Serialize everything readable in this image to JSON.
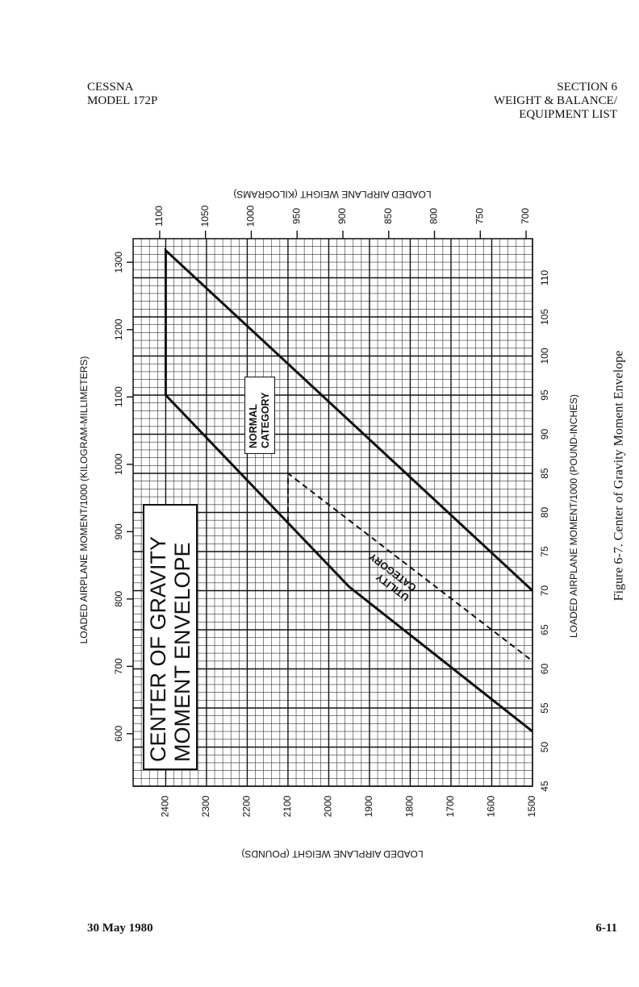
{
  "header": {
    "left": [
      "CESSNA",
      "MODEL 172P"
    ],
    "right": [
      "SECTION 6",
      "WEIGHT & BALANCE/",
      "EQUIPMENT LIST"
    ]
  },
  "footer": {
    "left": "30 May 1980",
    "right": "6-11"
  },
  "caption": "Figure 6-7.  Center of Gravity Moment Envelope",
  "chart_data": {
    "type": "line",
    "title": "CENTER OF GRAVITY MOMENT ENVELOPE",
    "xlabel": "LOADED AIRPLANE MOMENT/1000 (POUND-INCHES)",
    "x2label": "LOADED AIRPLANE MOMENT/1000 (KILOGRAM-MILLIMETERS)",
    "ylabel": "LOADED AIRPLANE WEIGHT (POUNDS)",
    "y2label": "LOADED AIRPLANE WEIGHT (KILOGRAMS)",
    "xlim": [
      45,
      115
    ],
    "xticks": [
      45,
      50,
      55,
      60,
      65,
      70,
      75,
      80,
      85,
      90,
      95,
      100,
      105,
      110
    ],
    "x2lim": [
      522,
      1335
    ],
    "x2ticks": [
      600,
      700,
      800,
      900,
      1000,
      1100,
      1200,
      1300
    ],
    "ylim": [
      1500,
      2480
    ],
    "yticks": [
      1500,
      1600,
      1700,
      1800,
      1900,
      2000,
      2100,
      2200,
      2300,
      2400
    ],
    "y2lim": [
      693,
      1129
    ],
    "y2ticks": [
      700,
      750,
      800,
      850,
      900,
      950,
      1000,
      1050,
      1100
    ],
    "grid": true,
    "series": [
      {
        "name": "NORMAL CATEGORY",
        "color": "#111111",
        "dashed": false,
        "x": [
          52,
          70.5,
          95,
          113.5,
          70
        ],
        "values": [
          1500,
          1950,
          2400,
          2400,
          1500
        ]
      },
      {
        "name": "UTILITY CATEGORY",
        "color": "#111111",
        "dashed": true,
        "x": [
          78.7,
          85,
          61
        ],
        "values": [
          2100,
          2100,
          1500
        ]
      }
    ]
  }
}
